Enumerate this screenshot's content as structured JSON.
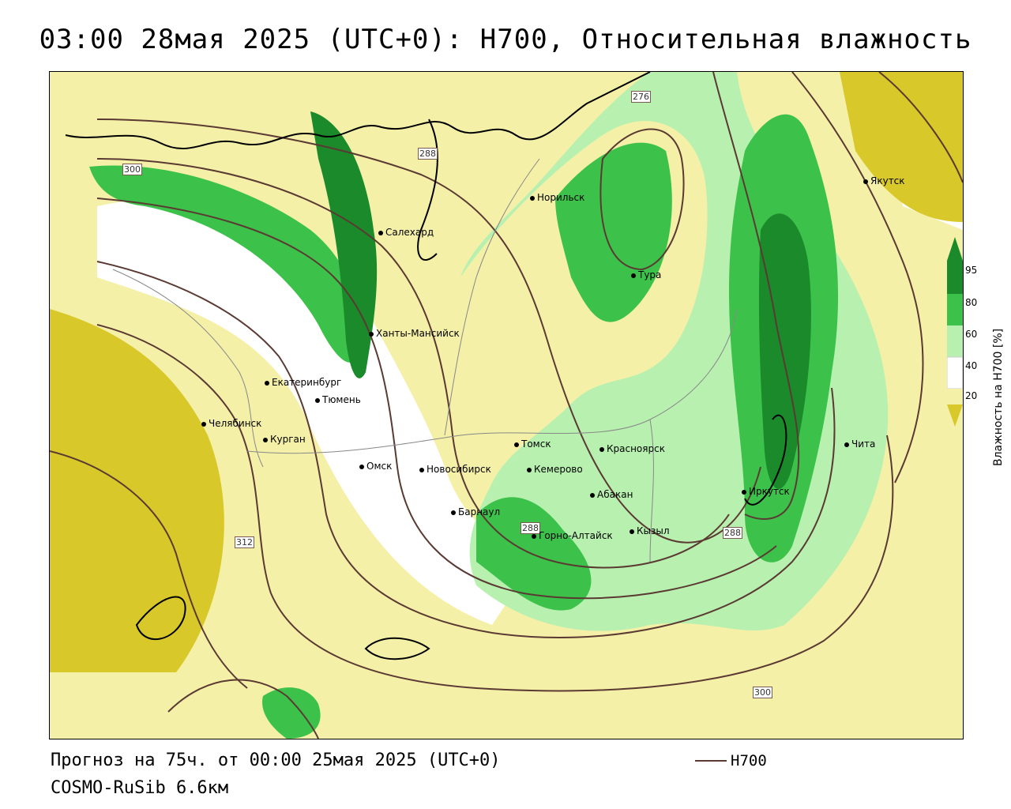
{
  "title": "03:00 28мая 2025 (UTC+0): H700, Относительная влажность",
  "footer": {
    "forecast": "Прогноз на 75ч. от 00:00 25мая 2025 (UTC+0)",
    "model": "COSMO-RuSib 6.6км",
    "legend_label": "H700"
  },
  "colorbar": {
    "title": "Влажность на H700 [%]",
    "ticks": [
      "95",
      "80",
      "60",
      "40",
      "20"
    ],
    "colors": {
      "c95": "#1a8a2a",
      "c80": "#3cc24a",
      "c60": "#b8f0b0",
      "c40": "#ffffff",
      "c20": "#f5f0a8",
      "low": "#d8c82a"
    }
  },
  "contour_color": "#5a3a32",
  "contour_labels": [
    "276",
    "288",
    "300",
    "312",
    "288",
    "288",
    "300"
  ],
  "cities": [
    {
      "name": "Якутск"
    },
    {
      "name": "Норильск"
    },
    {
      "name": "Салехард"
    },
    {
      "name": "Тура"
    },
    {
      "name": "Ханты-Мансийск"
    },
    {
      "name": "Екатеринбург"
    },
    {
      "name": "Тюмень"
    },
    {
      "name": "Челябинск"
    },
    {
      "name": "Курган"
    },
    {
      "name": "Омск"
    },
    {
      "name": "Новосибирск"
    },
    {
      "name": "Томск"
    },
    {
      "name": "Кемерово"
    },
    {
      "name": "Красноярск"
    },
    {
      "name": "Барнаул"
    },
    {
      "name": "Абакан"
    },
    {
      "name": "Горно-Алтайск"
    },
    {
      "name": "Кызыл"
    },
    {
      "name": "Иркутск"
    },
    {
      "name": "Чита"
    }
  ]
}
